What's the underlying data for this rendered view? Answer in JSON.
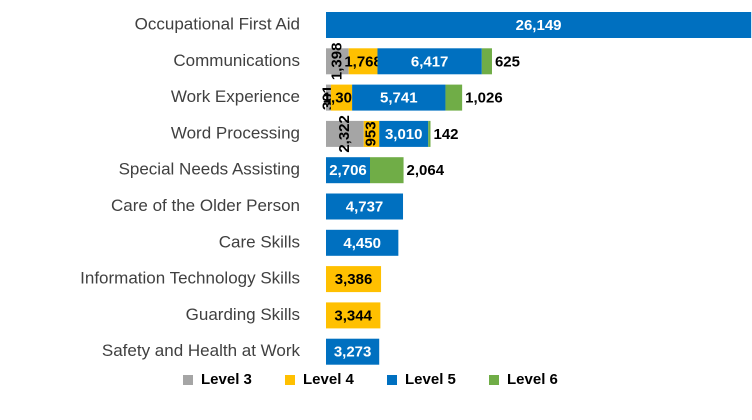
{
  "chart_data": {
    "type": "stacked-barh",
    "categories": [
      "Occupational First Aid",
      "Communications",
      "Work Experience",
      "Word Processing",
      "Special Needs Assisting",
      "Care of the Older Person",
      "Care Skills",
      "Information Technology Skills",
      "Guarding Skills",
      "Safety and Health at Work"
    ],
    "series": [
      {
        "name": "Level 3",
        "color": "#a5a5a5",
        "values": [
          null,
          1398,
          301,
          2322,
          null,
          null,
          null,
          null,
          null,
          null
        ],
        "value_labels": [
          null,
          "1,398",
          "301",
          "2,322",
          null,
          null,
          null,
          null,
          null,
          null
        ]
      },
      {
        "name": "Level 4",
        "color": "#ffc000",
        "values": [
          null,
          1768,
          1305,
          953,
          null,
          null,
          null,
          3386,
          3344,
          null
        ],
        "value_labels": [
          null,
          "1,768",
          "1,305",
          "953",
          null,
          null,
          null,
          "3,386",
          "3,344",
          null
        ]
      },
      {
        "name": "Level 5",
        "color": "#0070c0",
        "values": [
          26149,
          6417,
          5741,
          3010,
          2706,
          4737,
          4450,
          null,
          null,
          3273
        ],
        "value_labels": [
          "26,149",
          "6,417",
          "5,741",
          "3,010",
          "2,706",
          "4,737",
          "4,450",
          null,
          null,
          "3,273"
        ]
      },
      {
        "name": "Level 6",
        "color": "#70ad47",
        "values": [
          null,
          625,
          1026,
          142,
          2064,
          null,
          null,
          null,
          null,
          null
        ],
        "value_labels": [
          null,
          "625",
          "1,026",
          "142",
          "2,064",
          null,
          null,
          null,
          null,
          null
        ]
      }
    ],
    "xlim": [
      0,
      26200
    ],
    "legend": "bottom"
  }
}
